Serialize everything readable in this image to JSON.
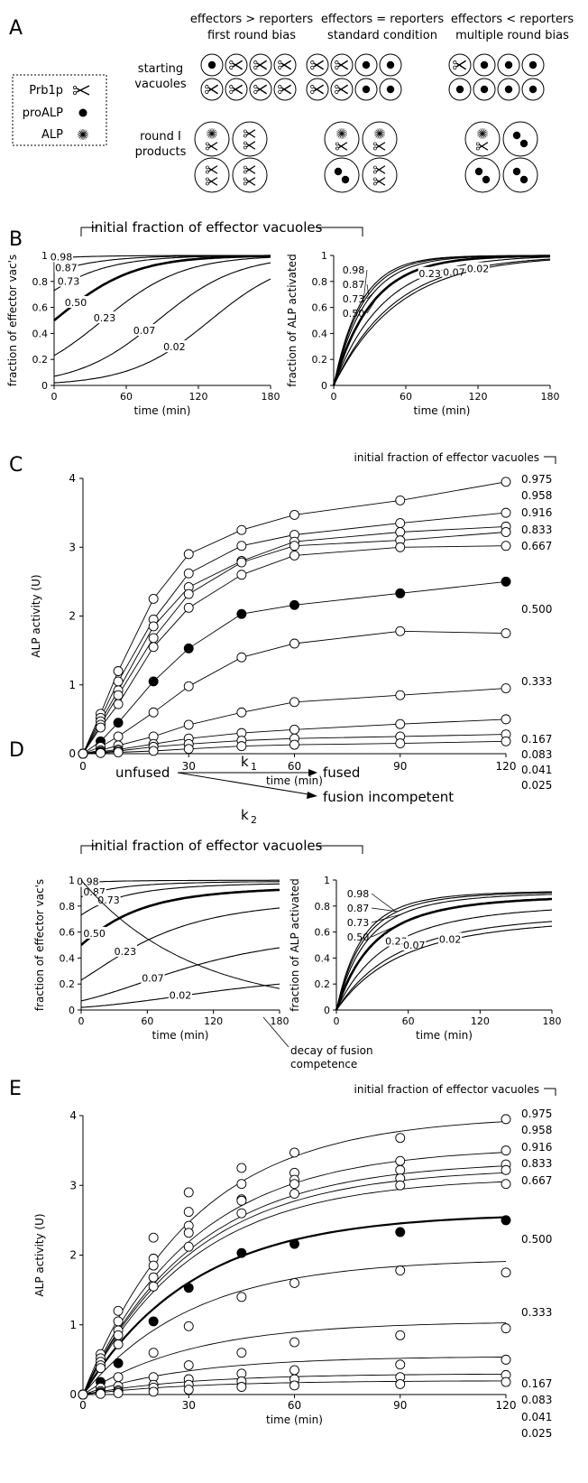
{
  "panelA": {
    "letter": "A",
    "legend": {
      "prb1p": "Prb1p",
      "proalp": "proALP",
      "alp": "ALP"
    },
    "row_labels": {
      "starting": [
        "starting",
        "vacuoles"
      ],
      "products": [
        "round I",
        "products"
      ]
    },
    "columns": [
      {
        "line1": "effectors > reporters",
        "line2": "first round bias"
      },
      {
        "line1": "effectors = reporters",
        "line2": "standard condition"
      },
      {
        "line1": "effectors < reporters",
        "line2": "multiple round bias"
      }
    ]
  },
  "panelB": {
    "letter": "B",
    "bracket_label": "initial fraction of effector vacuoles"
  },
  "panelC": {
    "letter": "C"
  },
  "panelD": {
    "letter": "D",
    "scheme": {
      "unfused": "unfused",
      "fused": "fused",
      "incompetent": "fusion incompetent",
      "k1": "k",
      "k1sub": "1",
      "k2": "k",
      "k2sub": "2"
    },
    "bracket_label": "initial fraction of effector vacuoles",
    "decay_label": [
      "decay of fusion",
      "competence"
    ]
  },
  "panelE": {
    "letter": "E"
  },
  "chart_data": [
    {
      "id": "B-left",
      "type": "line",
      "xlabel": "time (min)",
      "ylabel": "fraction of effector vac's",
      "xlim": [
        0,
        180
      ],
      "ylim": [
        0,
        1
      ],
      "xticks": [
        0,
        60,
        120,
        180
      ],
      "yticks": [
        0,
        0.2,
        0.4,
        0.6,
        0.8,
        1
      ],
      "ytick_labels": [
        "0",
        "0.2",
        "0.4",
        "0.6",
        "0.8",
        "1"
      ],
      "model": "logistic",
      "k": 0.03,
      "series": [
        {
          "name": "0.98",
          "y0": 0.98
        },
        {
          "name": "0.87",
          "y0": 0.87
        },
        {
          "name": "0.73",
          "y0": 0.73
        },
        {
          "name": "0.50",
          "y0": 0.5,
          "bold": true
        },
        {
          "name": "0.23",
          "y0": 0.23
        },
        {
          "name": "0.07",
          "y0": 0.07
        },
        {
          "name": "0.02",
          "y0": 0.02
        }
      ]
    },
    {
      "id": "B-right",
      "type": "line",
      "xlabel": "time (min)",
      "ylabel": "fraction of ALP activated",
      "xlim": [
        0,
        180
      ],
      "ylim": [
        0,
        1
      ],
      "xticks": [
        0,
        60,
        120,
        180
      ],
      "yticks": [
        0,
        0.2,
        0.4,
        0.6,
        0.8,
        1
      ],
      "ytick_labels": [
        "0",
        "0.2",
        "0.4",
        "0.6",
        "0.8",
        "1"
      ],
      "model": "activation",
      "k": 0.03,
      "series": [
        {
          "name": "0.98",
          "y0": 0.98
        },
        {
          "name": "0.87",
          "y0": 0.87
        },
        {
          "name": "0.73",
          "y0": 0.73
        },
        {
          "name": "0.50",
          "y0": 0.5,
          "bold": true
        },
        {
          "name": "0.23",
          "y0": 0.23
        },
        {
          "name": "0.07",
          "y0": 0.07
        },
        {
          "name": "0.02",
          "y0": 0.02
        }
      ]
    },
    {
      "id": "C",
      "type": "line",
      "title": "initial fraction of effector vacuoles",
      "xlabel": "time (min)",
      "ylabel": "ALP activity (U)",
      "xlim": [
        0,
        120
      ],
      "ylim": [
        0,
        4
      ],
      "xticks": [
        0,
        30,
        60,
        90,
        120
      ],
      "yticks": [
        0,
        1,
        2,
        3,
        4
      ],
      "ytick_labels": [
        "0",
        "1",
        "2",
        "3",
        "4"
      ],
      "x": [
        0,
        5,
        10,
        20,
        30,
        45,
        60,
        90,
        120
      ],
      "series": [
        {
          "name": "0.975",
          "values": [
            0,
            0.58,
            1.2,
            2.25,
            2.9,
            3.25,
            3.47,
            3.68,
            3.95
          ]
        },
        {
          "name": "0.958",
          "values": [
            0,
            0.52,
            1.05,
            1.95,
            2.62,
            3.02,
            3.18,
            3.35,
            3.5
          ]
        },
        {
          "name": "0.916",
          "values": [
            0,
            0.47,
            0.92,
            1.85,
            2.42,
            2.8,
            3.08,
            3.22,
            3.3
          ]
        },
        {
          "name": "0.833",
          "values": [
            0,
            0.42,
            0.85,
            1.68,
            2.32,
            2.78,
            3.02,
            3.1,
            3.22
          ]
        },
        {
          "name": "0.667",
          "values": [
            0,
            0.38,
            0.72,
            1.55,
            2.12,
            2.6,
            2.88,
            3.0,
            3.02
          ]
        },
        {
          "name": "0.500",
          "values": [
            0,
            0.18,
            0.45,
            1.05,
            1.53,
            2.03,
            2.16,
            2.33,
            2.5
          ],
          "filled": true
        },
        {
          "name": "0.333",
          "values": [
            0,
            0.1,
            0.25,
            0.6,
            0.98,
            1.4,
            1.6,
            1.78,
            1.75
          ]
        },
        {
          "name": "0.167",
          "values": [
            0,
            0.05,
            0.12,
            0.25,
            0.42,
            0.6,
            0.75,
            0.85,
            0.95
          ]
        },
        {
          "name": "0.083",
          "values": [
            0,
            0.03,
            0.06,
            0.14,
            0.22,
            0.3,
            0.35,
            0.43,
            0.5
          ]
        },
        {
          "name": "0.041",
          "values": [
            0,
            0.02,
            0.04,
            0.1,
            0.14,
            0.19,
            0.22,
            0.25,
            0.28
          ]
        },
        {
          "name": "0.025",
          "values": [
            0,
            0.01,
            0.02,
            0.04,
            0.07,
            0.11,
            0.13,
            0.15,
            0.18
          ]
        }
      ]
    },
    {
      "id": "D-left",
      "type": "line",
      "xlabel": "time (min)",
      "ylabel": "fraction of effector vac's",
      "xlim": [
        0,
        180
      ],
      "ylim": [
        0,
        1
      ],
      "xticks": [
        0,
        60,
        120,
        180
      ],
      "yticks": [
        0,
        0.2,
        0.4,
        0.6,
        0.8,
        1
      ],
      "ytick_labels": [
        "0",
        "0.2",
        "0.4",
        "0.6",
        "0.8",
        "1"
      ],
      "model": "decay",
      "k": 0.03,
      "kd": 0.01,
      "series": [
        {
          "name": "0.98",
          "y0": 0.98
        },
        {
          "name": "0.87",
          "y0": 0.87
        },
        {
          "name": "0.73",
          "y0": 0.73
        },
        {
          "name": "0.50",
          "y0": 0.5,
          "bold": true
        },
        {
          "name": "0.23",
          "y0": 0.23
        },
        {
          "name": "0.07",
          "y0": 0.07
        },
        {
          "name": "0.02",
          "y0": 0.02
        }
      ]
    },
    {
      "id": "D-right",
      "type": "line",
      "xlabel": "time (min)",
      "ylabel": "fraction of ALP activated",
      "xlim": [
        0,
        180
      ],
      "ylim": [
        0,
        1
      ],
      "xticks": [
        0,
        60,
        120,
        180
      ],
      "yticks": [
        0,
        0.2,
        0.4,
        0.6,
        0.8,
        1
      ],
      "ytick_labels": [
        "0",
        "0.2",
        "0.4",
        "0.6",
        "0.8",
        "1"
      ],
      "model": "decay-activation",
      "k": 0.03,
      "kd": 0.01,
      "series": [
        {
          "name": "0.98",
          "y0": 0.98
        },
        {
          "name": "0.87",
          "y0": 0.87
        },
        {
          "name": "0.73",
          "y0": 0.73
        },
        {
          "name": "0.50",
          "y0": 0.5,
          "bold": true
        },
        {
          "name": "0.23",
          "y0": 0.23
        },
        {
          "name": "0.07",
          "y0": 0.07
        },
        {
          "name": "0.02",
          "y0": 0.02
        }
      ]
    },
    {
      "id": "E",
      "type": "scatter",
      "title": "initial fraction of effector vacuoles",
      "xlabel": "time (min)",
      "ylabel": "ALP activity (U)",
      "xlim": [
        0,
        120
      ],
      "ylim": [
        0,
        4
      ],
      "xticks": [
        0,
        30,
        60,
        90,
        120
      ],
      "yticks": [
        0,
        1,
        2,
        3,
        4
      ],
      "ytick_labels": [
        "0",
        "1",
        "2",
        "3",
        "4"
      ],
      "x": [
        0,
        5,
        10,
        20,
        30,
        45,
        60,
        90,
        120
      ],
      "fit": "smooth saturating curves",
      "series": [
        {
          "name": "0.975",
          "values": [
            0,
            0.58,
            1.2,
            2.25,
            2.9,
            3.25,
            3.47,
            3.68,
            3.95
          ],
          "ymax": 4.0
        },
        {
          "name": "0.958",
          "values": [
            0,
            0.52,
            1.05,
            1.95,
            2.62,
            3.02,
            3.18,
            3.35,
            3.5
          ],
          "ymax": 3.55
        },
        {
          "name": "0.916",
          "values": [
            0,
            0.47,
            0.92,
            1.85,
            2.42,
            2.8,
            3.08,
            3.22,
            3.3
          ],
          "ymax": 3.35
        },
        {
          "name": "0.833",
          "values": [
            0,
            0.42,
            0.85,
            1.68,
            2.32,
            2.78,
            3.02,
            3.1,
            3.22
          ],
          "ymax": 3.25
        },
        {
          "name": "0.667",
          "values": [
            0,
            0.38,
            0.72,
            1.55,
            2.12,
            2.6,
            2.88,
            3.0,
            3.02
          ],
          "ymax": 3.12
        },
        {
          "name": "0.500",
          "values": [
            0,
            0.18,
            0.45,
            1.05,
            1.53,
            2.03,
            2.16,
            2.33,
            2.5
          ],
          "ymax": 2.6,
          "filled": true
        },
        {
          "name": "0.333",
          "values": [
            0,
            0.1,
            0.25,
            0.6,
            0.98,
            1.4,
            1.6,
            1.78,
            1.75
          ],
          "ymax": 1.95
        },
        {
          "name": "0.167",
          "values": [
            0,
            0.05,
            0.12,
            0.25,
            0.42,
            0.6,
            0.75,
            0.85,
            0.95
          ],
          "ymax": 1.05
        },
        {
          "name": "0.083",
          "values": [
            0,
            0.03,
            0.06,
            0.14,
            0.22,
            0.3,
            0.35,
            0.43,
            0.5
          ],
          "ymax": 0.55
        },
        {
          "name": "0.041",
          "values": [
            0,
            0.02,
            0.04,
            0.1,
            0.14,
            0.19,
            0.22,
            0.25,
            0.28
          ],
          "ymax": 0.3
        },
        {
          "name": "0.025",
          "values": [
            0,
            0.01,
            0.02,
            0.04,
            0.07,
            0.11,
            0.13,
            0.15,
            0.18
          ],
          "ymax": 0.2
        }
      ]
    }
  ]
}
